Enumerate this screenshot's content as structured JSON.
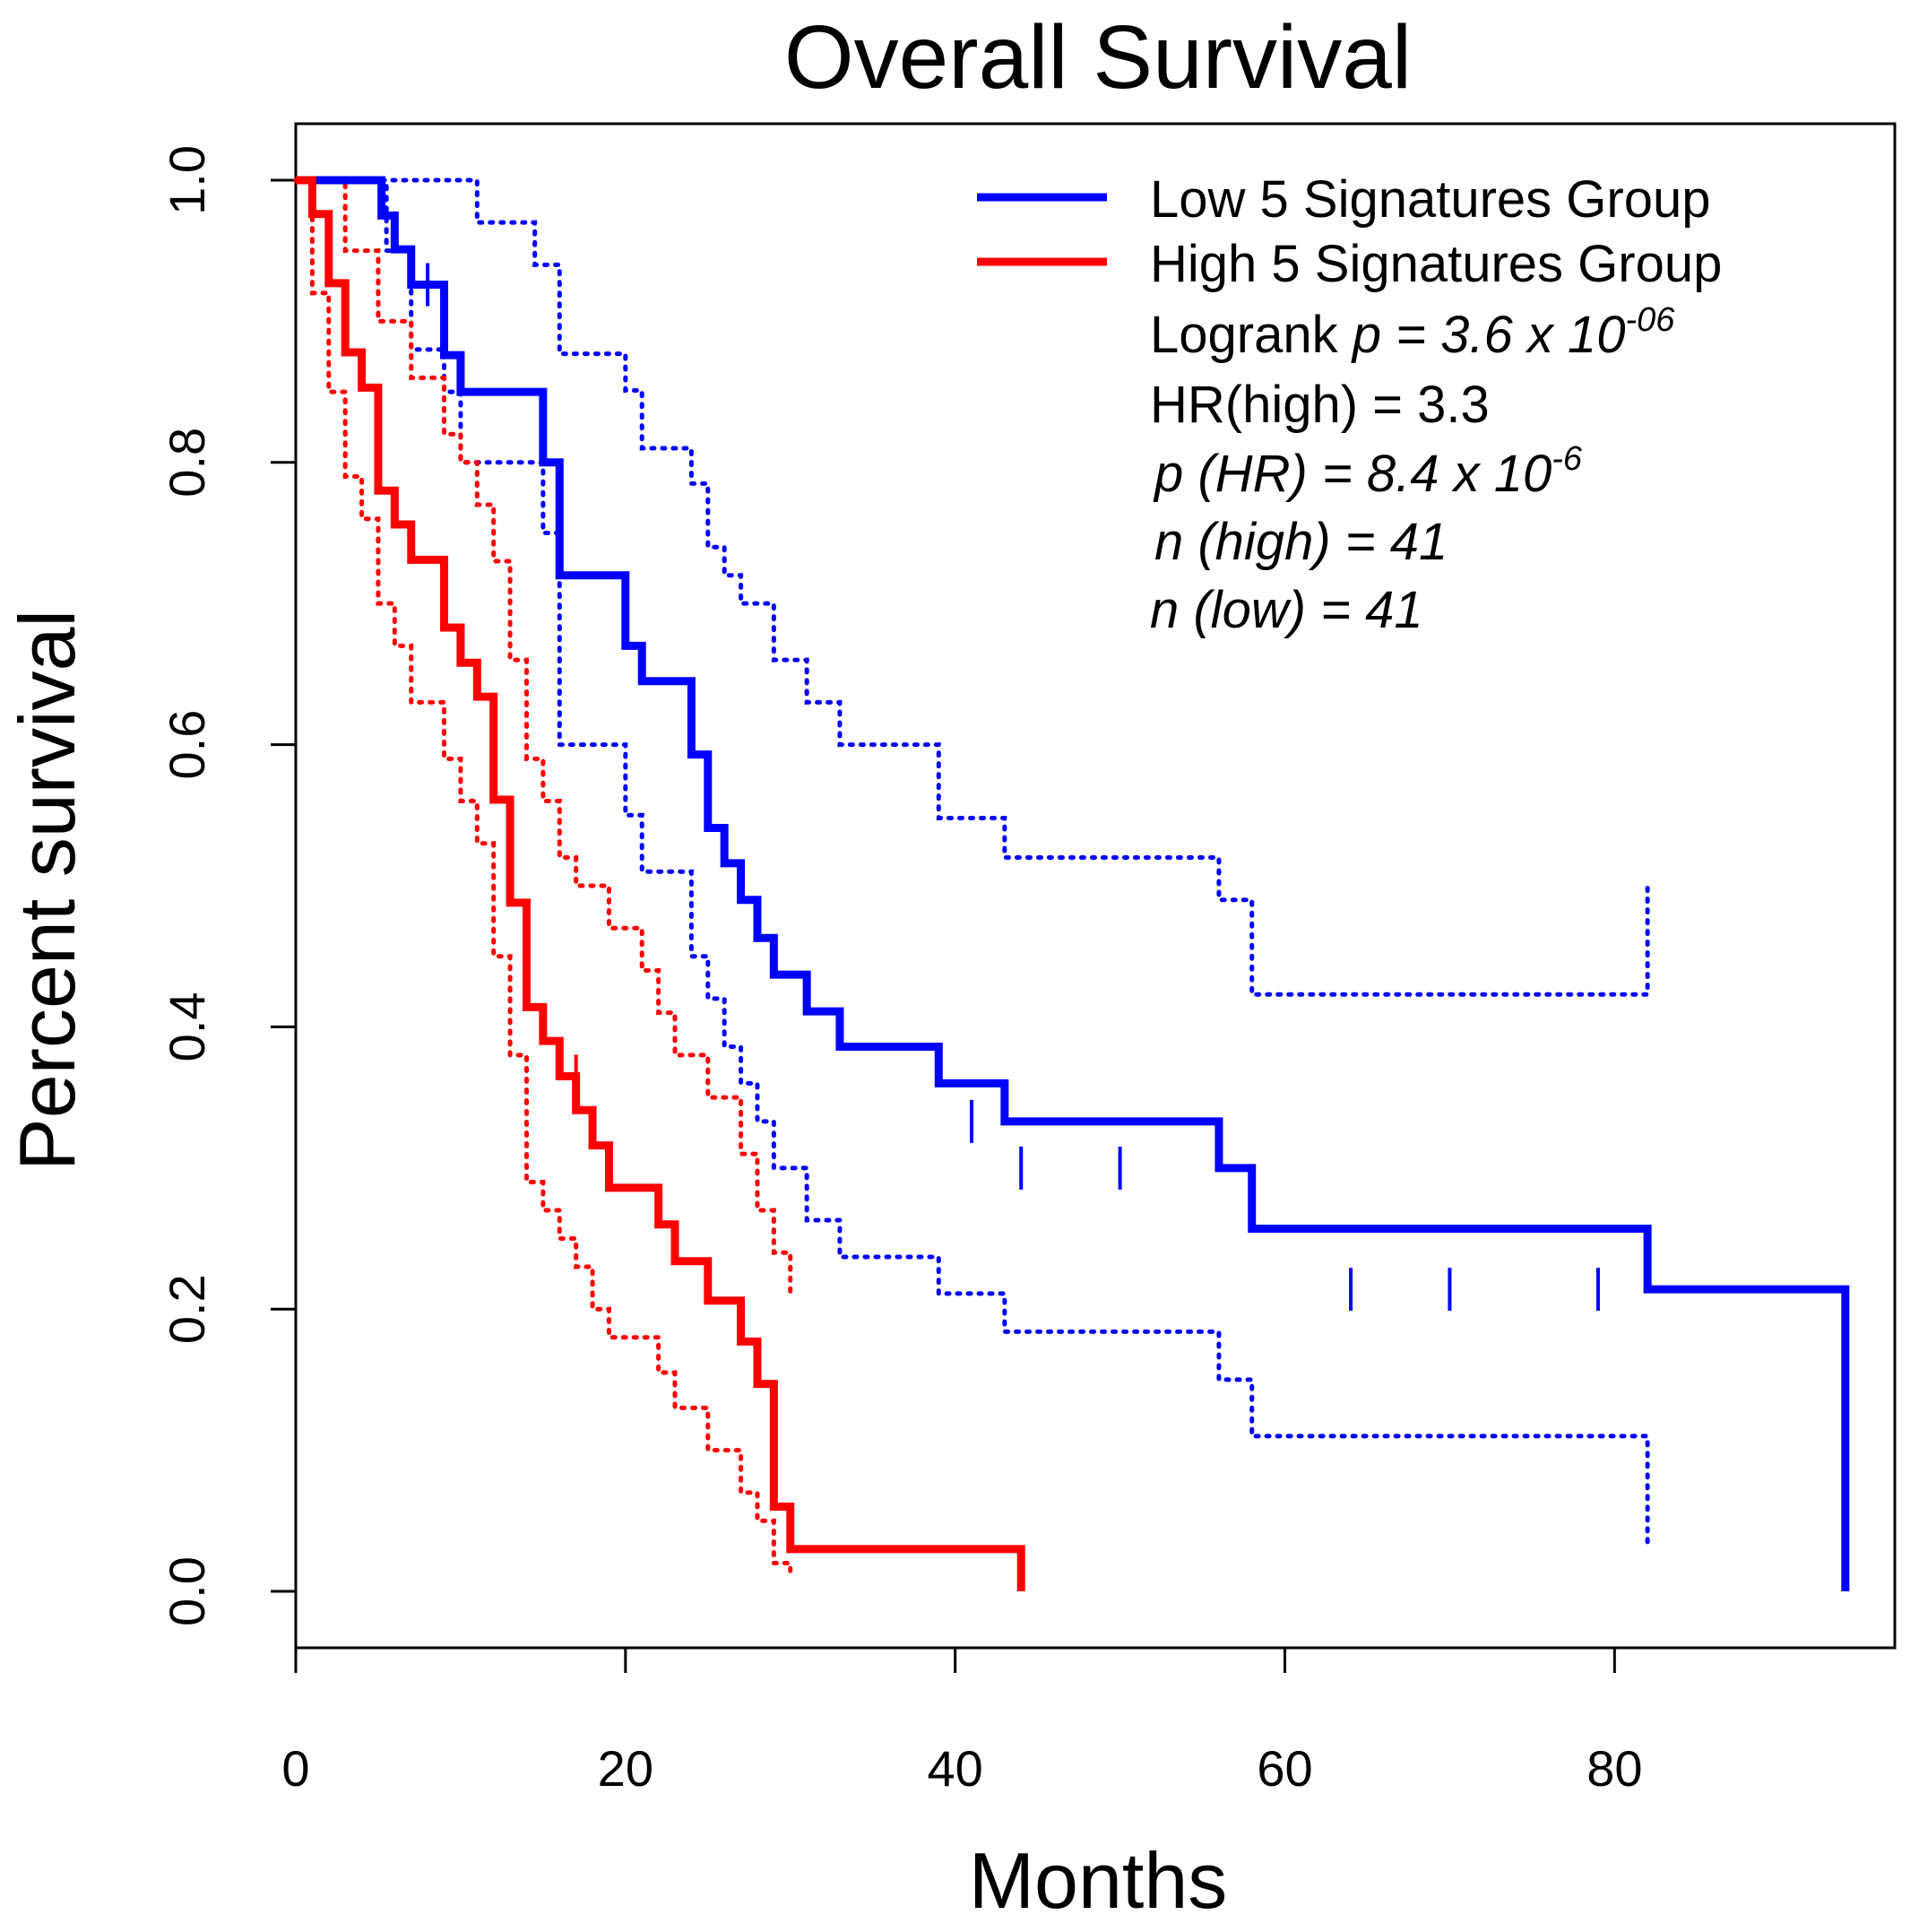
{
  "chart_data": {
    "type": "line",
    "title": "Overall Survival",
    "xlabel": "Months",
    "ylabel": "Percent survival",
    "xlim": [
      0,
      97
    ],
    "ylim": [
      -0.04,
      1.04
    ],
    "xticks": [
      "0",
      "20",
      "40",
      "60",
      "80"
    ],
    "xtick_values": [
      0,
      20,
      40,
      60,
      80
    ],
    "yticks": [
      "0.0",
      "0.2",
      "0.4",
      "0.6",
      "0.8",
      "1.0"
    ],
    "ytick_values": [
      0,
      0.2,
      0.4,
      0.6,
      0.8,
      1.0
    ],
    "grid": false,
    "legend_position": "top-right",
    "colors": {
      "low": "#0000ff",
      "high": "#ff0000",
      "axis": "#000000"
    },
    "legend": {
      "low_label": "Low 5 Signatures Group",
      "high_label": "High 5 Signatures Group",
      "logrank_prefix": "Logrank ",
      "logrank_p": "p = 3.6 x 10",
      "logrank_exp": "-06",
      "hr": "HR(high) = 3.3",
      "p_hr": "p (HR) = 8.4 x 10",
      "p_hr_exp": "-6",
      "n_high": "n (high) = 41",
      "n_low": "n (low) = 41"
    },
    "series": [
      {
        "name": "Low 5 Signatures Group",
        "color": "#0000ff",
        "x": [
          0,
          5.2,
          6,
          7,
          9,
          10,
          15,
          16,
          20,
          21,
          24,
          25,
          26,
          27,
          28,
          29,
          31,
          33,
          39,
          43,
          56,
          58,
          82,
          94
        ],
        "y": [
          1.0,
          0.975,
          0.951,
          0.926,
          0.876,
          0.85,
          0.8,
          0.72,
          0.67,
          0.645,
          0.593,
          0.541,
          0.516,
          0.49,
          0.463,
          0.437,
          0.411,
          0.386,
          0.36,
          0.333,
          0.3,
          0.257,
          0.214,
          0.107
        ],
        "end_x": 94,
        "end_y": 0.0,
        "censor_x": [
          8,
          41,
          44,
          50,
          64,
          70,
          79
        ],
        "censor_y": [
          0.926,
          0.333,
          0.3,
          0.3,
          0.214,
          0.214,
          0.214
        ],
        "ci_upper": {
          "x": [
            0,
            7,
            11,
            14.5,
            16,
            20,
            21,
            24,
            25,
            26,
            27,
            29,
            31,
            33,
            39,
            43,
            56,
            58,
            82
          ],
          "y": [
            1.0,
            1.0,
            0.97,
            0.94,
            0.877,
            0.851,
            0.81,
            0.785,
            0.74,
            0.72,
            0.7,
            0.66,
            0.63,
            0.6,
            0.548,
            0.52,
            0.49,
            0.423,
            0.423
          ],
          "end_y": 0.5
        },
        "ci_lower": {
          "x": [
            0,
            5.5,
            7,
            9,
            10,
            15,
            16,
            20,
            21,
            24,
            25,
            26,
            27,
            28,
            29,
            31,
            33,
            39,
            43,
            56,
            58,
            82
          ],
          "y": [
            1.0,
            0.95,
            0.88,
            0.85,
            0.8,
            0.75,
            0.6,
            0.55,
            0.51,
            0.45,
            0.42,
            0.386,
            0.36,
            0.333,
            0.3,
            0.263,
            0.237,
            0.211,
            0.184,
            0.15,
            0.11,
            0.11
          ],
          "end_y": 0.03
        }
      },
      {
        "name": "High 5 Signatures Group",
        "color": "#ff0000",
        "x": [
          0,
          1,
          2,
          3,
          4,
          5,
          6,
          7,
          9,
          10,
          11,
          12,
          13,
          14,
          15,
          16,
          17,
          18,
          19,
          22,
          23,
          25,
          27,
          28,
          29,
          30
        ],
        "y": [
          1.0,
          0.976,
          0.927,
          0.878,
          0.853,
          0.78,
          0.756,
          0.731,
          0.683,
          0.658,
          0.634,
          0.561,
          0.488,
          0.414,
          0.39,
          0.365,
          0.341,
          0.316,
          0.286,
          0.26,
          0.234,
          0.206,
          0.177,
          0.147,
          0.06,
          0.03
        ],
        "end_x": 44,
        "end_y": 0.0,
        "censor_x": [
          17
        ],
        "censor_y": [
          0.365
        ],
        "ci_upper": {
          "x": [
            0,
            3,
            5,
            7,
            9,
            10,
            11,
            12,
            13,
            14,
            15,
            16,
            17,
            19,
            21,
            22,
            23,
            25,
            27,
            28,
            29
          ],
          "y": [
            1.0,
            0.95,
            0.9,
            0.86,
            0.82,
            0.8,
            0.77,
            0.73,
            0.66,
            0.59,
            0.56,
            0.52,
            0.5,
            0.47,
            0.44,
            0.41,
            0.38,
            0.35,
            0.31,
            0.27,
            0.24
          ],
          "end_x": 30,
          "end_y": 0.21
        },
        "ci_lower": {
          "x": [
            0,
            1,
            2,
            3,
            4,
            5,
            6,
            7,
            9,
            10,
            11,
            12,
            13,
            14,
            15,
            16,
            17,
            18,
            19,
            22,
            23,
            25,
            27,
            28,
            29
          ],
          "y": [
            1.0,
            0.92,
            0.85,
            0.79,
            0.76,
            0.7,
            0.67,
            0.63,
            0.59,
            0.56,
            0.53,
            0.45,
            0.38,
            0.29,
            0.27,
            0.25,
            0.23,
            0.2,
            0.18,
            0.155,
            0.13,
            0.1,
            0.07,
            0.05,
            0.02
          ],
          "end_x": 30,
          "end_y": 0.01
        }
      }
    ]
  }
}
